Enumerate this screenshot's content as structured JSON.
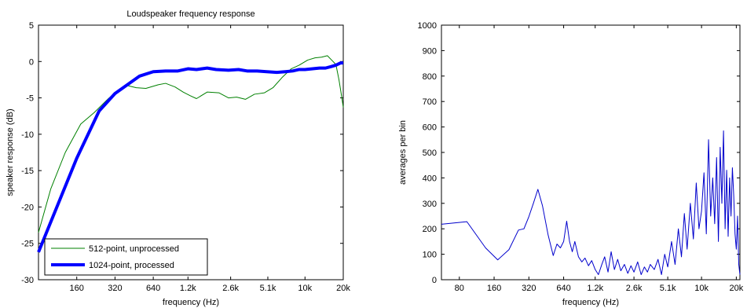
{
  "chart_data": [
    {
      "type": "line",
      "title": "Loudspeaker frequency response",
      "xlabel": "frequency (Hz)",
      "ylabel": "speaker response (dB)",
      "xscale": "log",
      "xlim": [
        80,
        20000
      ],
      "ylim": [
        -30,
        5
      ],
      "xticks": [
        160,
        320,
        640,
        1200,
        2600,
        5100,
        10000,
        20000
      ],
      "xtick_labels": [
        "160",
        "320",
        "640",
        "1.2k",
        "2.6k",
        "5.1k",
        "10k",
        "20k"
      ],
      "yticks": [
        5,
        0,
        -5,
        -10,
        -15,
        -20,
        -25,
        -30
      ],
      "ytick_labels": [
        "5",
        "0",
        "-5",
        "-10",
        "-15",
        "-20",
        "-25",
        "-30"
      ],
      "grid": false,
      "legend_position": "bottom-left",
      "series": [
        {
          "name": "512-point, unprocessed",
          "color": "#008000",
          "x": [
            80,
            100,
            130,
            172,
            220,
            280,
            340,
            400,
            470,
            560,
            700,
            800,
            950,
            1100,
            1250,
            1400,
            1700,
            2100,
            2500,
            2900,
            3400,
            4000,
            4800,
            5600,
            6600,
            7800,
            9000,
            10500,
            12000,
            13500,
            15000,
            16200,
            17500,
            18500,
            19500,
            20000
          ],
          "y": [
            -23.5,
            -17.5,
            -12.5,
            -8.6,
            -7.0,
            -5.2,
            -3.9,
            -3.3,
            -3.6,
            -3.7,
            -3.2,
            -3.0,
            -3.5,
            -4.2,
            -4.7,
            -5.1,
            -4.2,
            -4.3,
            -5.0,
            -4.9,
            -5.2,
            -4.5,
            -4.3,
            -3.6,
            -2.2,
            -1.0,
            -0.5,
            0.2,
            0.5,
            0.6,
            0.8,
            0.2,
            -0.4,
            -2.5,
            -5.0,
            -6.3
          ]
        },
        {
          "name": "1024-point, processed",
          "color": "#0000ff",
          "x": [
            80,
            160,
            240,
            320,
            400,
            500,
            640,
            800,
            1000,
            1200,
            1400,
            1700,
            2000,
            2500,
            3000,
            3500,
            4200,
            5000,
            6000,
            7000,
            8000,
            9000,
            10000,
            11500,
            13000,
            14500,
            16000,
            17500,
            19000,
            20000
          ],
          "y": [
            -26.2,
            -13.3,
            -6.8,
            -4.4,
            -3.2,
            -2.0,
            -1.4,
            -1.3,
            -1.3,
            -1.0,
            -1.1,
            -0.9,
            -1.1,
            -1.2,
            -1.1,
            -1.3,
            -1.3,
            -1.4,
            -1.5,
            -1.4,
            -1.3,
            -1.1,
            -1.1,
            -1.0,
            -0.9,
            -0.9,
            -0.7,
            -0.5,
            -0.2,
            -0.2
          ]
        }
      ]
    },
    {
      "type": "line",
      "title": "",
      "xlabel": "frequency (Hz)",
      "ylabel": "averages per bin",
      "xscale": "log",
      "xlim": [
        56,
        21500
      ],
      "ylim": [
        0,
        1000
      ],
      "xticks": [
        80,
        160,
        320,
        640,
        1200,
        2600,
        5100,
        10000,
        20000
      ],
      "xtick_labels": [
        "80",
        "160",
        "320",
        "640",
        "1.2k",
        "2.6k",
        "5.1k",
        "10k",
        "20k"
      ],
      "yticks": [
        0,
        100,
        200,
        300,
        400,
        500,
        600,
        700,
        800,
        900,
        1000
      ],
      "ytick_labels": [
        "0",
        "100",
        "200",
        "300",
        "400",
        "500",
        "600",
        "700",
        "800",
        "900",
        "1000"
      ],
      "grid": false,
      "series": [
        {
          "color": "#0000cc",
          "x": [
            56,
            93,
            135,
            172,
            215,
            260,
            290,
            320,
            350,
            383,
            420,
            470,
            520,
            560,
            600,
            640,
            680,
            720,
            760,
            800,
            860,
            920,
            980,
            1050,
            1120,
            1200,
            1280,
            1370,
            1450,
            1550,
            1650,
            1760,
            1880,
            2000,
            2150,
            2300,
            2450,
            2600,
            2800,
            3000,
            3200,
            3400,
            3600,
            3900,
            4200,
            4500,
            4800,
            5100,
            5500,
            5900,
            6300,
            6700,
            7100,
            7500,
            8000,
            8500,
            9000,
            9500,
            10000,
            10500,
            11000,
            11500,
            12000,
            12500,
            13000,
            13500,
            14000,
            14500,
            15000,
            15500,
            16000,
            16500,
            17000,
            17500,
            18000,
            18500,
            19000,
            19500,
            20000,
            20500,
            21000,
            21500
          ],
          "y": [
            218,
            228,
            125,
            78,
            118,
            195,
            200,
            248,
            300,
            355,
            290,
            175,
            95,
            140,
            125,
            150,
            230,
            150,
            110,
            150,
            90,
            70,
            85,
            55,
            75,
            40,
            20,
            60,
            90,
            30,
            110,
            40,
            80,
            35,
            60,
            25,
            55,
            30,
            70,
            20,
            50,
            30,
            60,
            40,
            80,
            20,
            100,
            50,
            150,
            60,
            200,
            90,
            260,
            120,
            300,
            160,
            380,
            200,
            270,
            420,
            180,
            550,
            250,
            400,
            220,
            480,
            150,
            520,
            300,
            585,
            200,
            430,
            170,
            400,
            250,
            440,
            330,
            180,
            120,
            250,
            60,
            20
          ]
        }
      ]
    }
  ]
}
